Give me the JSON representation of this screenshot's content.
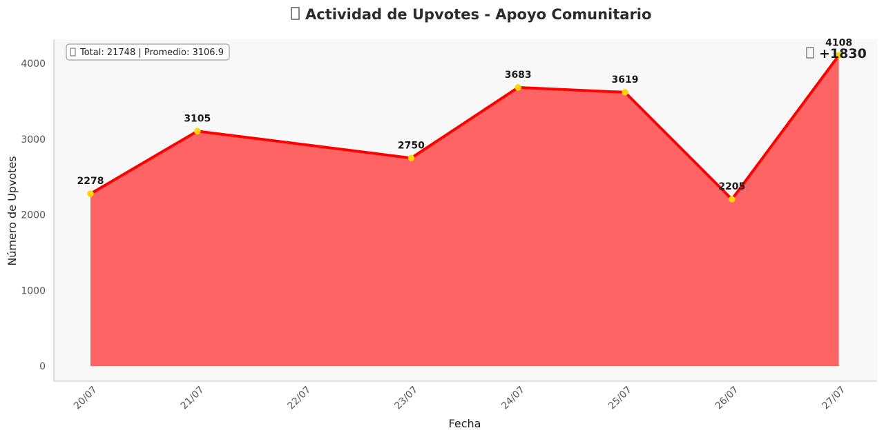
{
  "chart_data": {
    "type": "area",
    "title": "Actividad de Upvotes - Apoyo Comunitario",
    "title_icon": "missing-glyph-icon",
    "xlabel": "Fecha",
    "ylabel": "Número de Upvotes",
    "categories": [
      "20/07",
      "21/07",
      "22/07",
      "23/07",
      "24/07",
      "25/07",
      "26/07",
      "27/07"
    ],
    "series": [
      {
        "x": [
          "20/07",
          "21/07",
          "23/07",
          "24/07",
          "25/07",
          "26/07",
          "27/07"
        ],
        "values": [
          2278,
          3105,
          2750,
          3683,
          3619,
          2205,
          4108
        ],
        "line_color": "#ff0000",
        "fill_color": "#ff6464",
        "marker_color": "#ffd700"
      }
    ],
    "data_labels": [
      "2278",
      "3105",
      "2750",
      "3683",
      "3619",
      "2205",
      "4108"
    ],
    "ylim": [
      -200,
      4320
    ],
    "y_ticks": [
      0,
      1000,
      2000,
      3000,
      4000
    ],
    "grid": false,
    "background": "#f8f8f8",
    "stats_box": {
      "icon": "missing-glyph-icon",
      "text": "Total: 21748 | Promedio: 3106.9",
      "placement": "top-left"
    },
    "delta_annotation": {
      "icon": "missing-glyph-icon",
      "text": "+1830",
      "placement": "top-right"
    }
  }
}
